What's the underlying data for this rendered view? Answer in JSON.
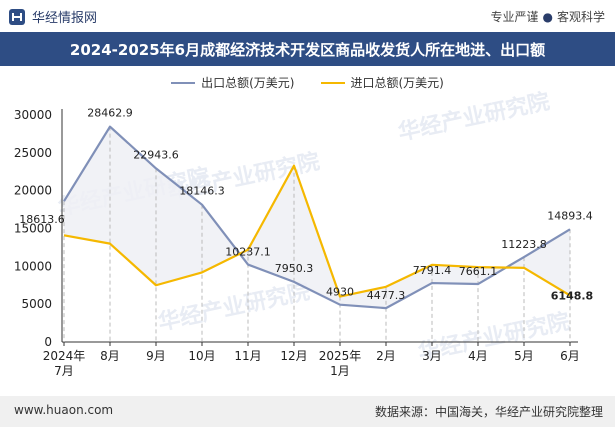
{
  "header": {
    "brand": "华经情报网",
    "tagline_left": "专业严谨",
    "tagline_right": "客观科学"
  },
  "footer": {
    "url": "www.huaon.com",
    "source": "数据来源：中国海关，华经产业研究院整理"
  },
  "watermark": "华经产业研究院",
  "colors": {
    "export": "#8090b8",
    "import": "#f5b800",
    "title_bg": "#2e4d84"
  },
  "chart_data": {
    "type": "line",
    "title": "2024-2025年6月成都经济技术开发区商品收发货人所在地进、出口额",
    "categories": [
      "2024年\n7月",
      "8月",
      "9月",
      "10月",
      "11月",
      "12月",
      "2025年\n1月",
      "2月",
      "3月",
      "4月",
      "5月",
      "6月"
    ],
    "ylim": [
      0,
      30000
    ],
    "yticks": [
      0,
      5000,
      10000,
      15000,
      20000,
      25000,
      30000
    ],
    "series": [
      {
        "name": "出口总额(万美元)",
        "values": [
          18613.6,
          28462.9,
          22943.6,
          18146.3,
          10237.1,
          7950.3,
          4930,
          4477.3,
          7791.4,
          7661.1,
          11223.8,
          14893.4
        ],
        "labels": [
          "18613.6",
          "28462.9",
          "22943.6",
          "18146.3",
          "10237.1",
          "7950.3",
          "4930",
          "4477.3",
          "7791.4",
          "7661.1",
          "11223.8",
          "14893.4"
        ]
      },
      {
        "name": "进口总额(万美元)",
        "values": [
          14100,
          13000,
          7500,
          9200,
          12200,
          23300,
          6000,
          7300,
          10200,
          9900,
          9800,
          6148.8
        ],
        "labels": [
          "",
          "",
          "",
          "",
          "",
          "",
          "",
          "",
          "",
          "",
          "",
          "6148.8"
        ]
      }
    ]
  }
}
